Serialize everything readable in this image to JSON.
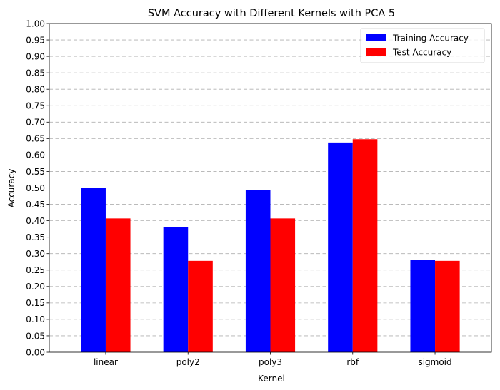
{
  "chart_data": {
    "type": "bar",
    "title": "SVM Accuracy with Different Kernels with PCA 5",
    "xlabel": "Kernel",
    "ylabel": "Accuracy",
    "categories": [
      "linear",
      "poly2",
      "poly3",
      "rbf",
      "sigmoid"
    ],
    "series": [
      {
        "name": "Training Accuracy",
        "color": "#0000ff",
        "values": [
          0.5,
          0.381,
          0.494,
          0.638,
          0.281
        ]
      },
      {
        "name": "Test Accuracy",
        "color": "#ff0000",
        "values": [
          0.407,
          0.278,
          0.407,
          0.648,
          0.278
        ]
      }
    ],
    "ylim": [
      0,
      1.0
    ],
    "yticks": [
      "0.00",
      "0.05",
      "0.10",
      "0.15",
      "0.20",
      "0.25",
      "0.30",
      "0.35",
      "0.40",
      "0.45",
      "0.50",
      "0.55",
      "0.60",
      "0.65",
      "0.70",
      "0.75",
      "0.80",
      "0.85",
      "0.90",
      "0.95",
      "1.00"
    ],
    "grid": "horizontal-dashed",
    "legend_position": "top-right"
  }
}
